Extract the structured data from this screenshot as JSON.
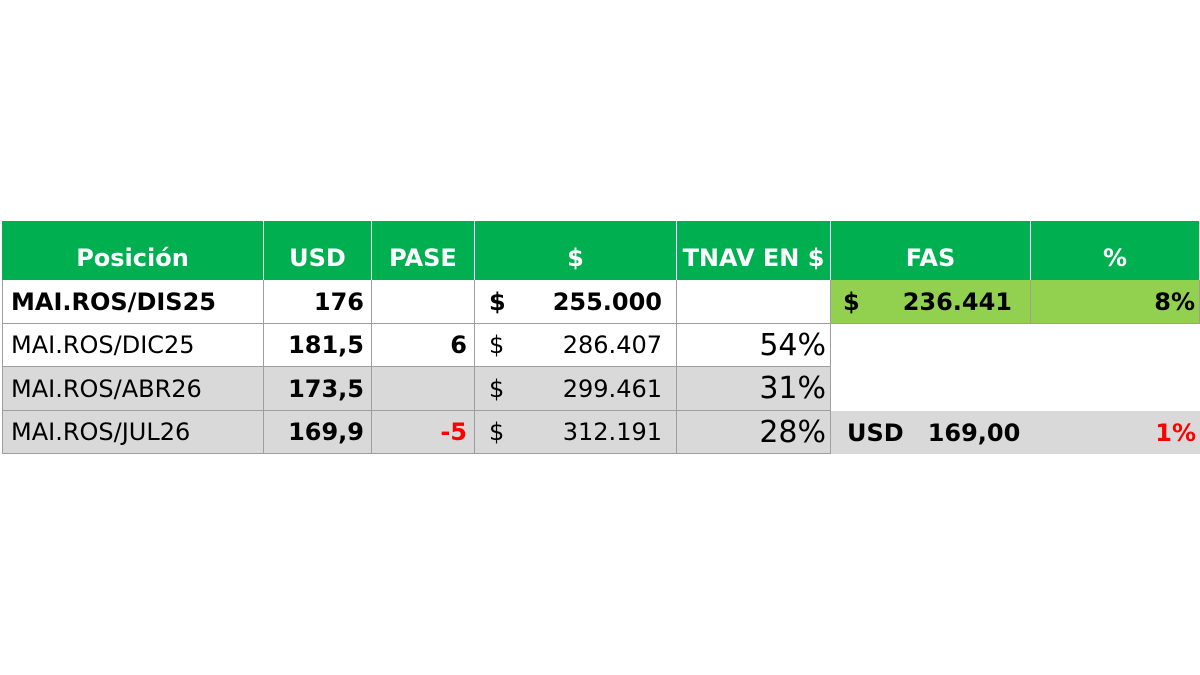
{
  "headers": {
    "posicion": "Posición",
    "usd": "USD",
    "pase": "PASE",
    "ars": "$",
    "tnav": "TNAV EN $",
    "fas": "FAS",
    "pct": "%"
  },
  "rows": [
    {
      "posicion": "MAI.ROS/DIS25",
      "usd": "176",
      "pase": "",
      "ars_symbol": "$",
      "ars_value": "255.000",
      "tnav": ""
    },
    {
      "posicion": "MAI.ROS/DIC25",
      "usd": "181,5",
      "pase": "6",
      "ars_symbol": "$",
      "ars_value": "286.407",
      "tnav": "54%"
    },
    {
      "posicion": "MAI.ROS/ABR26",
      "usd": "173,5",
      "pase": "",
      "ars_symbol": "$",
      "ars_value": "299.461",
      "tnav": "31%"
    },
    {
      "posicion": "MAI.ROS/JUL26",
      "usd": "169,9",
      "pase": "-5",
      "ars_symbol": "$",
      "ars_value": "312.191",
      "tnav": "28%"
    }
  ],
  "fas": {
    "pesos_symbol": "$",
    "pesos_value": "236.441",
    "pesos_pct": "8%",
    "usd_label": "USD",
    "usd_value": "169,00",
    "usd_pct": "1%"
  },
  "colors": {
    "header_green": "#00b050",
    "light_green": "#92d050",
    "grey": "#d9d9d9",
    "negative_red": "#ff0000"
  }
}
